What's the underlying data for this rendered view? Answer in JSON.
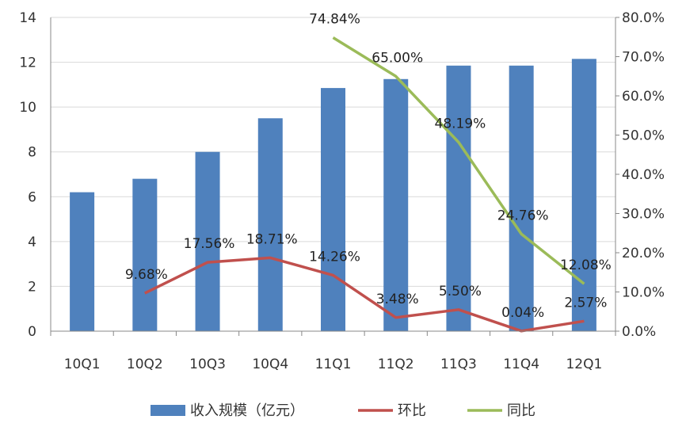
{
  "chart_data": {
    "type": "bar",
    "categories": [
      "10Q1",
      "10Q2",
      "10Q3",
      "10Q4",
      "11Q1",
      "11Q2",
      "11Q3",
      "11Q4",
      "12Q1"
    ],
    "y_left": {
      "min": 0,
      "max": 14,
      "step": 2,
      "ticks": [
        "0",
        "2",
        "4",
        "6",
        "8",
        "10",
        "12",
        "14"
      ]
    },
    "y_right": {
      "min": 0,
      "max": 80,
      "step": 10,
      "ticks": [
        "0.0%",
        "10.0%",
        "20.0%",
        "30.0%",
        "40.0%",
        "50.0%",
        "60.0%",
        "70.0%",
        "80.0%"
      ]
    },
    "grid": "horizontal",
    "legend_position": "bottom",
    "series": [
      {
        "name": "收入规模（亿元）",
        "type": "bar",
        "axis": "left",
        "color": "#4F81BD",
        "values": [
          6.2,
          6.8,
          8.0,
          9.5,
          10.85,
          11.25,
          11.85,
          11.85,
          12.15
        ]
      },
      {
        "name": "环比",
        "type": "line",
        "axis": "right",
        "color": "#C0504D",
        "values": [
          null,
          9.68,
          17.56,
          18.71,
          14.26,
          3.48,
          5.5,
          0.04,
          2.57
        ],
        "labels": [
          "",
          "9.68%",
          "17.56%",
          "18.71%",
          "14.26%",
          "3.48%",
          "5.50%",
          "0.04%",
          "2.57%"
        ]
      },
      {
        "name": "同比",
        "type": "line",
        "axis": "right",
        "color": "#9BBB59",
        "values": [
          null,
          null,
          null,
          null,
          74.84,
          65.0,
          48.19,
          24.76,
          12.08
        ],
        "labels": [
          "",
          "",
          "",
          "",
          "74.84%",
          "65.00%",
          "48.19%",
          "24.76%",
          "12.08%"
        ]
      }
    ]
  }
}
